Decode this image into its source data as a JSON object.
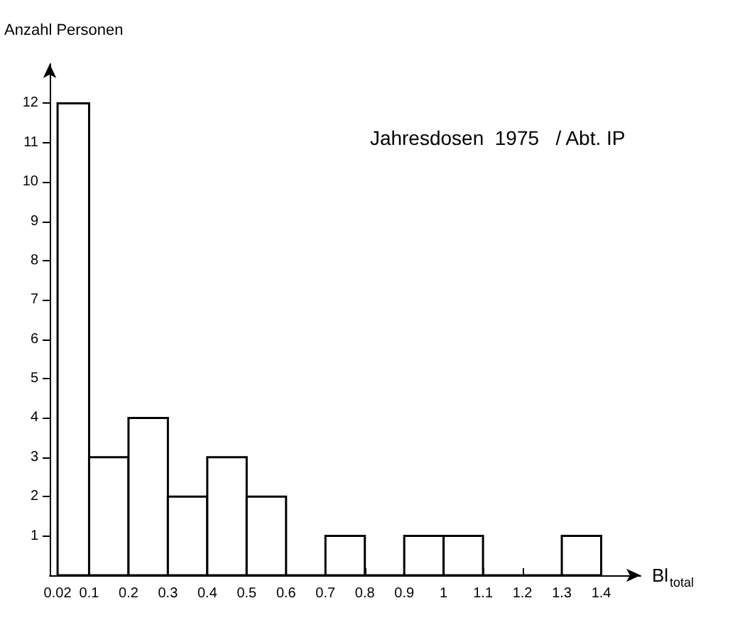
{
  "chart_data": {
    "type": "histogram",
    "title": "Jahresdosen  1975   / Abt. IP",
    "xlabel": "Bl$_{total}$",
    "ylabel": "Anzahl Personen",
    "bins": [
      0.02,
      0.1,
      0.2,
      0.3,
      0.4,
      0.5,
      0.6,
      0.7,
      0.8,
      0.9,
      1,
      1.1,
      1.2,
      1.3,
      1.4
    ],
    "values": [
      12,
      3,
      4,
      2,
      3,
      2,
      0,
      1,
      0,
      1,
      1,
      0,
      0,
      1
    ],
    "color": "#000000",
    "xlim": [
      0,
      1.5
    ],
    "xticks": [
      0.02,
      0.1,
      0.2,
      0.3,
      0.4,
      0.5,
      0.6,
      0.7,
      0.8,
      0.9,
      1,
      1.1,
      1.2,
      1.3,
      1.4
    ],
    "ylim": [
      0,
      13
    ],
    "yticks": [
      1,
      2,
      3,
      4,
      5,
      6,
      7,
      8,
      9,
      10,
      11,
      12
    ],
    "grid": false
  }
}
